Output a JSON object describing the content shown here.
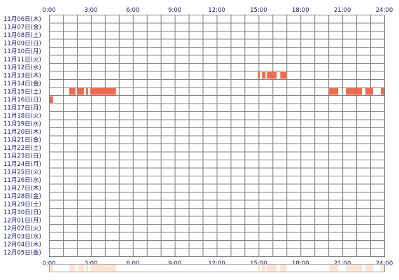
{
  "chart_data": {
    "type": "heatmap",
    "x_ticks": [
      "0:00",
      "3:00",
      "6:00",
      "9:00",
      "12:00",
      "15:00",
      "18:00",
      "21:00",
      "24:00"
    ],
    "x_range_hours": [
      0,
      24
    ],
    "rows": [
      "11月06日(木)",
      "11月07日(金)",
      "11月08日(土)",
      "11月09日(日)",
      "11月10日(月)",
      "11月11日(火)",
      "11月12日(水)",
      "11月13日(木)",
      "11月14日(金)",
      "11月15日(土)",
      "11月16日(日)",
      "11月17日(月)",
      "11月18日(火)",
      "11月19日(水)",
      "11月20日(木)",
      "11月21日(金)",
      "11月22日(土)",
      "11月23日(日)",
      "11月24日(月)",
      "11月25日(火)",
      "11月26日(水)",
      "11月27日(木)",
      "11月28日(金)",
      "11月29日(土)",
      "11月30日(日)",
      "12月01日(月)",
      "12月02日(火)",
      "12月03日(水)",
      "12月04日(木)",
      "12月05日(金)"
    ],
    "activity": [
      {
        "row": "11月13日(木)",
        "intervals": [
          [
            14.9,
            15.1
          ],
          [
            15.2,
            15.5
          ],
          [
            15.55,
            16.3
          ],
          [
            16.5,
            17.0
          ]
        ]
      },
      {
        "row": "11月15日(土)",
        "intervals": [
          [
            1.4,
            1.9
          ],
          [
            2.0,
            2.5
          ],
          [
            2.6,
            2.8
          ],
          [
            2.9,
            4.8
          ],
          [
            20.0,
            20.7
          ],
          [
            21.2,
            22.4
          ],
          [
            22.6,
            23.2
          ],
          [
            23.7,
            24.0
          ]
        ]
      },
      {
        "row": "11月16日(日)",
        "intervals": [
          [
            0.0,
            0.3
          ]
        ]
      }
    ],
    "summary_intervals": [
      [
        0.0,
        0.3
      ],
      [
        1.4,
        1.9
      ],
      [
        2.0,
        2.5
      ],
      [
        2.6,
        2.8
      ],
      [
        2.9,
        4.8
      ],
      [
        14.9,
        15.1
      ],
      [
        15.2,
        15.5
      ],
      [
        15.55,
        16.3
      ],
      [
        16.5,
        17.0
      ],
      [
        20.0,
        20.7
      ],
      [
        21.2,
        22.4
      ],
      [
        22.6,
        23.2
      ],
      [
        23.7,
        24.0
      ]
    ],
    "grid": true,
    "colors": {
      "active": "#ef6b4f",
      "summary": "#fde3d4",
      "grid_line": "#808080",
      "label": "#1a1a6e",
      "background": "#ffffff"
    }
  }
}
